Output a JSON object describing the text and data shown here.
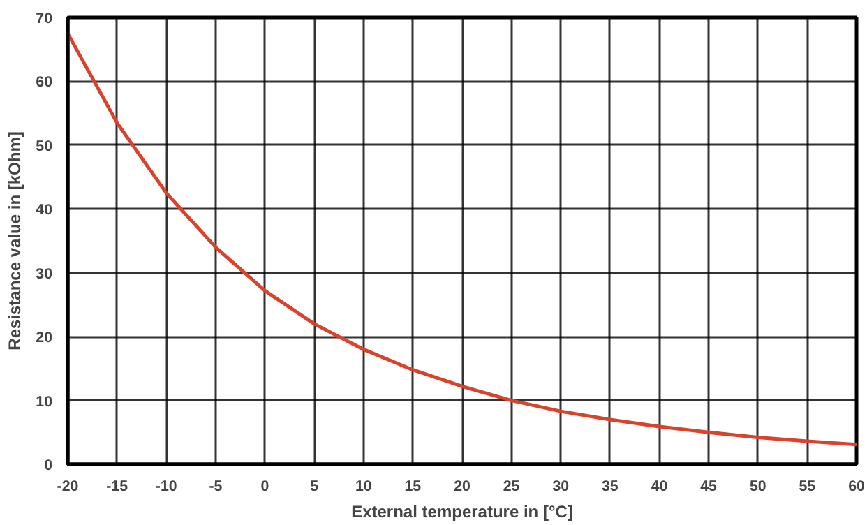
{
  "chart_data": {
    "type": "line",
    "xlabel": "External temperature in [°C]",
    "ylabel": "Resistance value in [kOhm]",
    "x": [
      -20,
      -15,
      -10,
      -5,
      0,
      5,
      10,
      15,
      20,
      25,
      30,
      35,
      40,
      45,
      50,
      55,
      60
    ],
    "series": [
      {
        "color": "#d9422b",
        "values": [
          67.5,
          53.5,
          42.5,
          34,
          27.2,
          22,
          18,
          14.8,
          12.2,
          10,
          8.3,
          7,
          5.9,
          5,
          4.2,
          3.6,
          3.1
        ]
      }
    ],
    "xlim": [
      -20,
      60
    ],
    "ylim": [
      0,
      70
    ],
    "xticks": [
      -20,
      -15,
      -10,
      -5,
      0,
      5,
      10,
      15,
      20,
      25,
      30,
      35,
      40,
      45,
      50,
      55,
      60
    ],
    "yticks": [
      0,
      10,
      20,
      30,
      40,
      50,
      60,
      70
    ],
    "grid": true,
    "marker": "none",
    "line_style": "solid"
  }
}
